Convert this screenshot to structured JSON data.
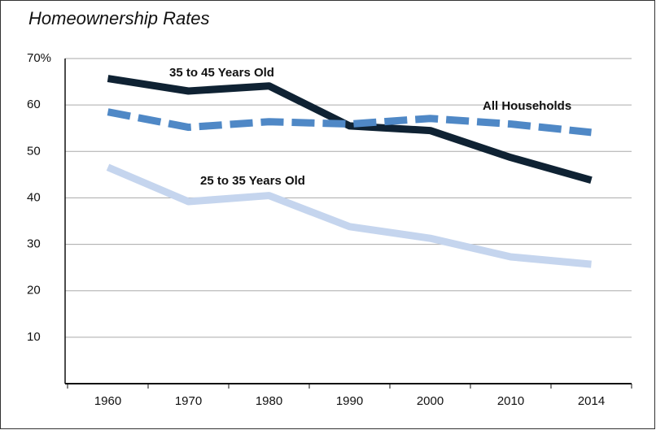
{
  "chart_data": {
    "type": "line",
    "title": "Homeownership Rates",
    "categories": [
      "1960",
      "1970",
      "1980",
      "1990",
      "2000",
      "2010",
      "2014"
    ],
    "series": [
      {
        "name": "35 to 45 Years Old",
        "color": "#0f2233",
        "dash": false,
        "values": [
          65.7,
          63.0,
          64.1,
          55.5,
          54.5,
          48.7,
          43.8
        ]
      },
      {
        "name": "All Households",
        "color": "#4f88c6",
        "dash": true,
        "values": [
          58.5,
          55.2,
          56.4,
          55.9,
          57.1,
          55.9,
          54.1
        ]
      },
      {
        "name": "25 to 35 Years Old",
        "color": "#c5d5ee",
        "dash": false,
        "values": [
          46.6,
          39.2,
          40.5,
          33.8,
          31.3,
          27.3,
          25.7
        ]
      }
    ],
    "ylim": [
      0,
      70
    ],
    "yticks": [
      10,
      20,
      30,
      40,
      50,
      60,
      {
        "value": 70,
        "label": "70%"
      }
    ],
    "grid": true
  }
}
